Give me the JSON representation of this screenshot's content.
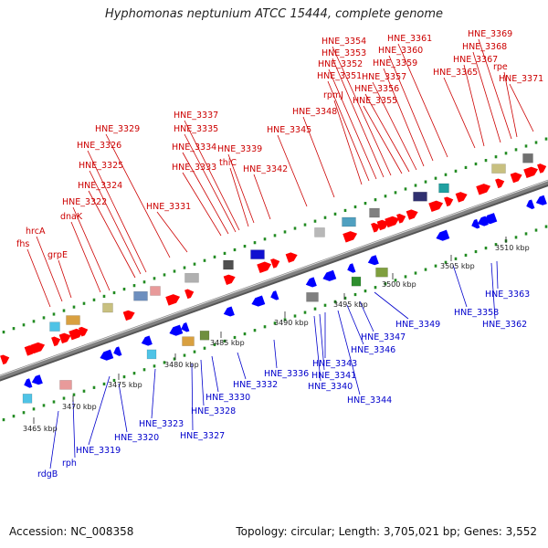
{
  "title": "Hyphomonas neptunium ATCC 15444, complete genome",
  "footer": {
    "accession": "Accession: NC_008358",
    "info": "Topology: circular; Length: 3,705,021 bp; Genes: 3,552"
  },
  "colors": {
    "forward_label": "#cc0000",
    "reverse_label": "#0000cc",
    "forward_gene": "#ff0000",
    "reverse_gene": "#0000ff",
    "backbone": "#808080",
    "tick_dots": "#228b22"
  },
  "scale_ticks": [
    "3465 kbp",
    "3470 kbp",
    "3475 kbp",
    "3480 kbp",
    "3485 kbp",
    "3490 kbp",
    "3495 kbp",
    "3500 kbp",
    "3505 kbp",
    "3510 kbp"
  ],
  "forward_labels": [
    "fhs",
    "hrcA",
    "grpE",
    "dnaK",
    "HNE_3322",
    "HNE_3324",
    "HNE_3325",
    "HNE_3326",
    "HNE_3329",
    "HNE_3331",
    "HNE_3333",
    "HNE_3334",
    "HNE_3335",
    "HNE_3337",
    "thiC",
    "HNE_3339",
    "HNE_3342",
    "HNE_3345",
    "HNE_3348",
    "rpmJ",
    "HNE_3351",
    "HNE_3352",
    "HNE_3353",
    "HNE_3354",
    "HNE_3355",
    "HNE_3356",
    "HNE_3357",
    "HNE_3359",
    "HNE_3360",
    "HNE_3361",
    "HNE_3365",
    "HNE_3367",
    "HNE_3368",
    "HNE_3369",
    "rpe",
    "HNE_3371"
  ],
  "reverse_labels": [
    "rdgB",
    "rph",
    "HNE_3319",
    "HNE_3320",
    "HNE_3323",
    "HNE_3327",
    "HNE_3328",
    "HNE_3330",
    "HNE_3332",
    "HNE_3336",
    "HNE_3341",
    "HNE_3340",
    "HNE_3343",
    "HNE_3344",
    "HNE_3346",
    "HNE_3347",
    "HNE_3349",
    "HNE_3358",
    "HNE_3362",
    "HNE_3363"
  ]
}
